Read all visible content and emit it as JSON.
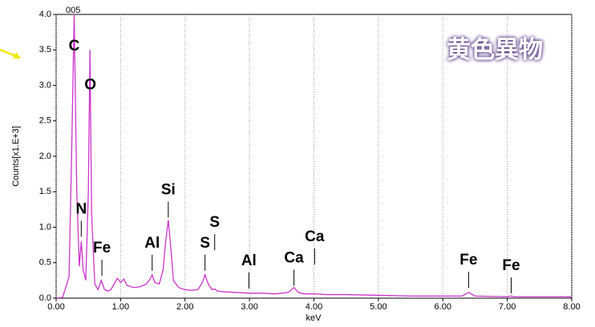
{
  "chart_data": {
    "type": "line",
    "spectrum_id": "005",
    "title": "黄色異物",
    "x_label": "keV",
    "y_label": "Counts[x1.E+3]",
    "xlim": [
      0,
      8
    ],
    "ylim": [
      0,
      4
    ],
    "xticks": [
      {
        "value": 0,
        "label": "0.00"
      },
      {
        "value": 1,
        "label": "1.00"
      },
      {
        "value": 2,
        "label": "2.00"
      },
      {
        "value": 3,
        "label": "3.00"
      },
      {
        "value": 4,
        "label": "4.00"
      },
      {
        "value": 5,
        "label": "5.00"
      },
      {
        "value": 6,
        "label": "6.00"
      },
      {
        "value": 7,
        "label": "7.00"
      },
      {
        "value": 8,
        "label": "8.00"
      }
    ],
    "yticks": [
      {
        "value": 0,
        "label": "0.0"
      },
      {
        "value": 0.5,
        "label": "0.5"
      },
      {
        "value": 1,
        "label": "1.0"
      },
      {
        "value": 1.5,
        "label": "1.5"
      },
      {
        "value": 2,
        "label": "2.0"
      },
      {
        "value": 2.5,
        "label": "2.5"
      },
      {
        "value": 3,
        "label": "3.0"
      },
      {
        "value": 3.5,
        "label": "3.5"
      },
      {
        "value": 4,
        "label": "4.0"
      }
    ],
    "grid": "x",
    "x": [
      0,
      0.1,
      0.2,
      0.24,
      0.28,
      0.32,
      0.36,
      0.39,
      0.42,
      0.46,
      0.5,
      0.525,
      0.55,
      0.6,
      0.65,
      0.7,
      0.75,
      0.8,
      0.85,
      0.9,
      0.95,
      1.0,
      1.05,
      1.1,
      1.2,
      1.3,
      1.4,
      1.45,
      1.49,
      1.53,
      1.6,
      1.66,
      1.7,
      1.74,
      1.78,
      1.82,
      1.9,
      2.0,
      2.1,
      2.2,
      2.27,
      2.31,
      2.36,
      2.42,
      2.46,
      2.5,
      2.6,
      2.8,
      3.0,
      3.2,
      3.4,
      3.6,
      3.69,
      3.76,
      3.85,
      4.0,
      4.2,
      4.5,
      5.0,
      5.5,
      6.0,
      6.3,
      6.4,
      6.5,
      7.0,
      7.06,
      7.1,
      7.5,
      8.0
    ],
    "series": [
      {
        "color": "#cc33cc",
        "values": [
          0,
          0.01,
          0.3,
          2.0,
          4.0,
          1.5,
          0.45,
          0.8,
          0.4,
          0.25,
          1.5,
          3.5,
          1.2,
          0.2,
          0.12,
          0.25,
          0.12,
          0.1,
          0.12,
          0.2,
          0.28,
          0.22,
          0.27,
          0.18,
          0.15,
          0.16,
          0.2,
          0.26,
          0.33,
          0.22,
          0.2,
          0.4,
          0.8,
          1.1,
          0.7,
          0.25,
          0.15,
          0.12,
          0.11,
          0.12,
          0.22,
          0.33,
          0.2,
          0.12,
          0.13,
          0.1,
          0.09,
          0.08,
          0.07,
          0.07,
          0.06,
          0.08,
          0.15,
          0.08,
          0.06,
          0.06,
          0.05,
          0.05,
          0.04,
          0.03,
          0.03,
          0.03,
          0.08,
          0.03,
          0.02,
          0.03,
          0.02,
          0.02,
          0.02
        ]
      }
    ],
    "annotations": [
      {
        "label": "C",
        "x": 0.28,
        "y": 3.55,
        "marker": false
      },
      {
        "label": "O",
        "x": 0.53,
        "y": 3.0,
        "marker": false
      },
      {
        "label": "N",
        "x": 0.39,
        "y": 1.25,
        "marker": true
      },
      {
        "label": "Fe",
        "x": 0.71,
        "y": 0.7,
        "marker": true
      },
      {
        "label": "Al",
        "x": 1.49,
        "y": 0.77,
        "marker": true
      },
      {
        "label": "Si",
        "x": 1.74,
        "y": 1.52,
        "marker": true
      },
      {
        "label": "S",
        "x": 2.31,
        "y": 0.77,
        "marker": true
      },
      {
        "label": "S",
        "x": 2.46,
        "y": 1.06,
        "marker": true
      },
      {
        "label": "Al",
        "x": 2.99,
        "y": 0.52,
        "marker": true
      },
      {
        "label": "Ca",
        "x": 3.69,
        "y": 0.56,
        "marker": true
      },
      {
        "label": "Ca",
        "x": 4.01,
        "y": 0.86,
        "marker": true
      },
      {
        "label": "Fe",
        "x": 6.4,
        "y": 0.53,
        "marker": true
      },
      {
        "label": "Fe",
        "x": 7.06,
        "y": 0.45,
        "marker": true
      }
    ]
  }
}
